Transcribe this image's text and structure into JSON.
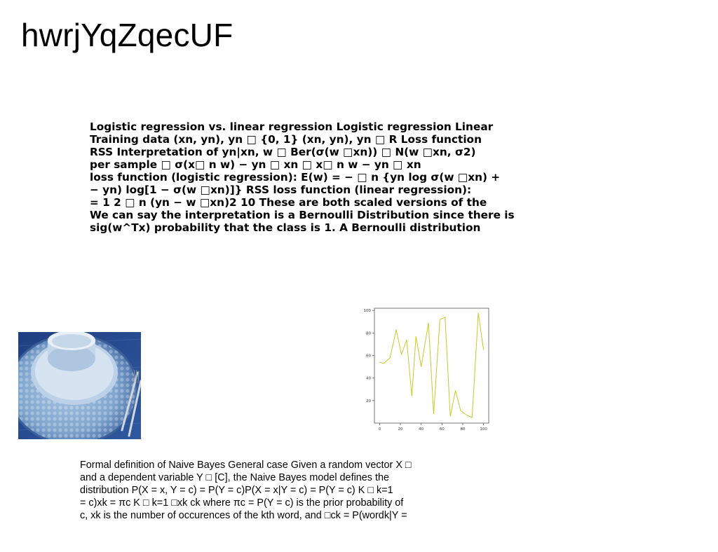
{
  "title": "hwrjYqZqecUF",
  "bold_paragraph": {
    "lines": [
      "Logistic regression vs. linear regression Logistic regression Linear",
      "Training data (xn, yn), yn □ {0, 1} (xn, yn), yn □ R Loss function",
      "RSS Interpretation of yn|xn, w □ Ber(σ(w □xn)) □ N(w □xn, σ2)",
      "per sample □ σ(x□ n w) − yn □ xn □ x□ n w − yn □ xn",
      "loss function (logistic regression): E(w) = − □ n {yn log σ(w □xn) +",
      "− yn) log[1 − σ(w □xn)]} RSS loss function (linear regression):",
      "= 1 2 □ n (yn − w □xn)2 10 These are both scaled versions of the",
      "We can say the interpretation is a Bernoulli Distribution since there is",
      "sig(w^Tx) probability that the class is 1. A Bernoulli distribution"
    ]
  },
  "photo": {
    "icon": "blue-place-setting-photo",
    "colors": {
      "background": "#2d4d8e",
      "placemat": "#8fb2d6",
      "plate": "#cbdcec",
      "bowl": "#dfe9f3"
    }
  },
  "chart_data": {
    "type": "line",
    "title": "",
    "xlabel": "",
    "ylabel": "",
    "xlim": [
      -5,
      105
    ],
    "ylim": [
      0,
      102
    ],
    "xticks": [
      0,
      20,
      40,
      60,
      80,
      100
    ],
    "yticks": [
      20,
      40,
      60,
      80,
      100
    ],
    "grid": false,
    "line_color": "#c8c82a",
    "series": [
      {
        "x": [
          0,
          4,
          10,
          16,
          21,
          26,
          31,
          35,
          40,
          47,
          52,
          58,
          63,
          68,
          73,
          78,
          84,
          89,
          95,
          100
        ],
        "values": [
          54,
          53,
          58,
          83,
          61,
          74,
          24,
          77,
          50,
          89,
          8,
          92,
          94,
          6,
          29,
          11,
          7,
          5,
          98,
          65
        ]
      }
    ]
  },
  "plain_paragraph": {
    "lines": [
      "Formal definition of Naive Bayes General case Given a random vector X □",
      "and a dependent variable Y □ [C], the Naive Bayes model defines the",
      "distribution P(X = x, Y = c) = P(Y = c)P(X = x|Y = c) = P(Y = c) K □ k=1",
      "= c)xk = πc K □ k=1 □xk ck where πc = P(Y = c) is the prior probability of",
      "c, xk is the number of occurences of the kth word, and □ck = P(wordk|Y ="
    ]
  }
}
